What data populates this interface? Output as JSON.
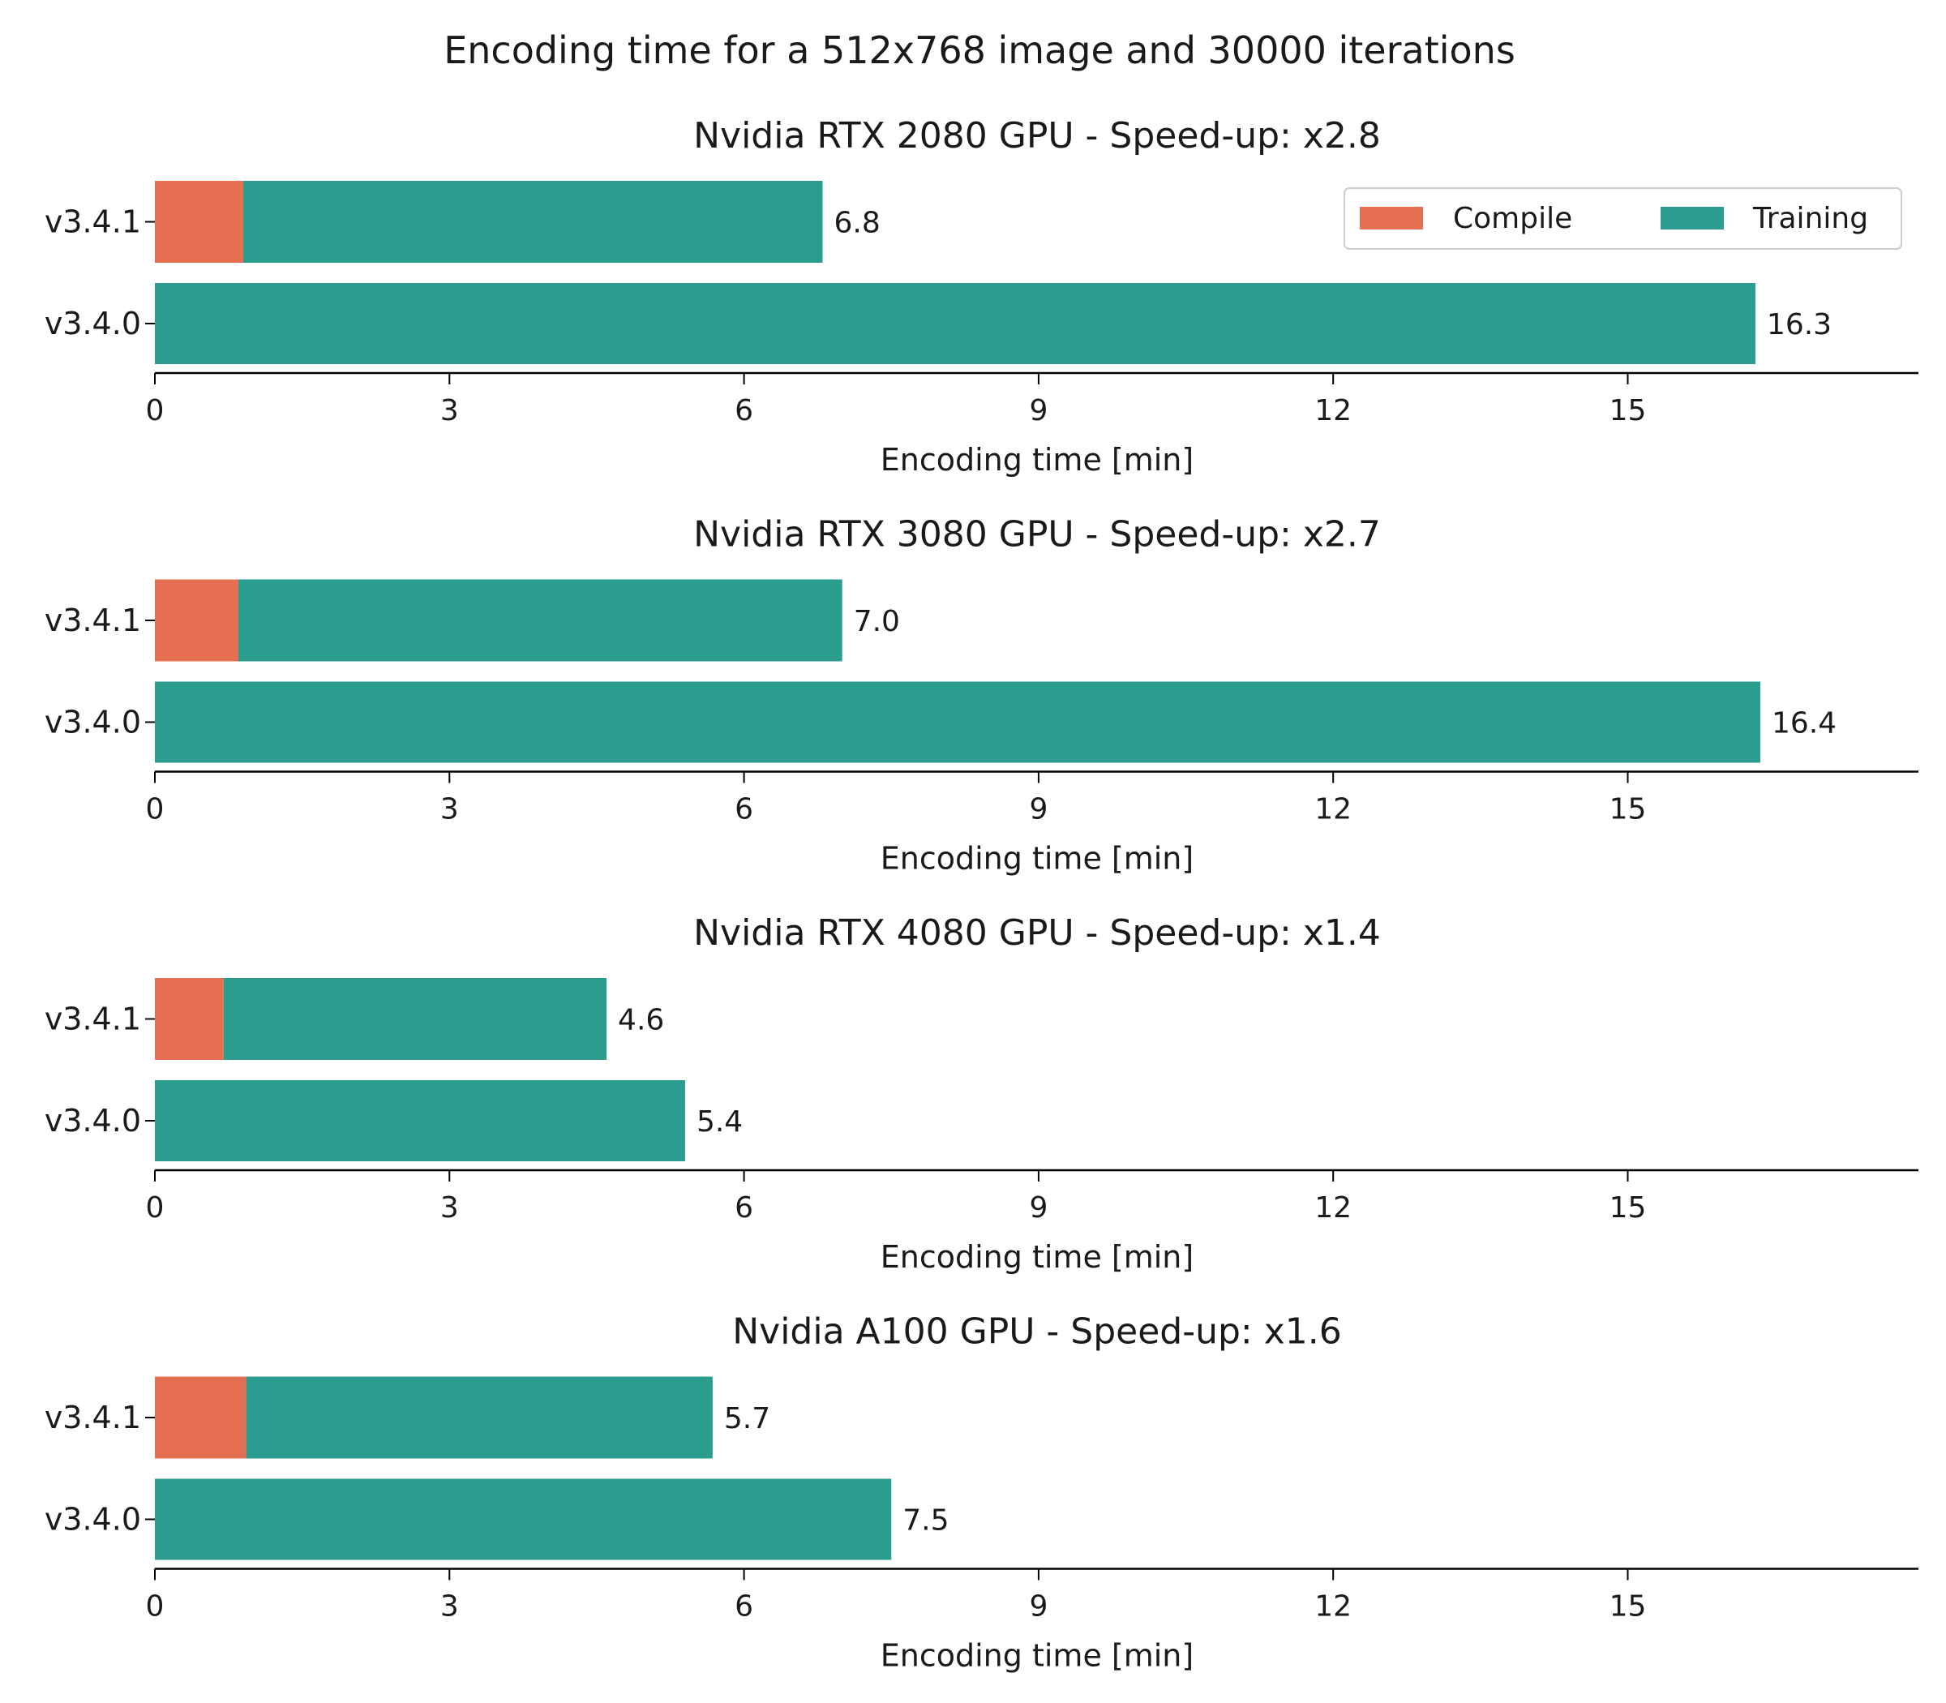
{
  "chart_data": {
    "type": "bar",
    "orientation": "horizontal",
    "stacked": true,
    "suptitle": "Encoding time for a  512x768 image and 30000 iterations",
    "xlabel": "Encoding time [min]",
    "xlim": [
      0,
      18
    ],
    "xticks": [
      "0",
      "3",
      "6",
      "9",
      "12",
      "15"
    ],
    "xtick_values": [
      0,
      3,
      6,
      9,
      12,
      15
    ],
    "legend": {
      "placement": "top-right",
      "entries": [
        {
          "name": "Compile",
          "color": "#E76F51"
        },
        {
          "name": "Training",
          "color": "#2A9D8F"
        }
      ]
    },
    "panels": [
      {
        "title": "Nvidia RTX 2080 GPU - Speed-up: x2.8",
        "bars": [
          {
            "label": "v3.4.1",
            "compile": 0.9,
            "training": 5.9,
            "total_label": "6.8"
          },
          {
            "label": "v3.4.0",
            "compile": 0,
            "training": 16.3,
            "total_label": "16.3"
          }
        ]
      },
      {
        "title": "Nvidia RTX 3080 GPU - Speed-up: x2.7",
        "bars": [
          {
            "label": "v3.4.1",
            "compile": 0.85,
            "training": 6.15,
            "total_label": "7.0"
          },
          {
            "label": "v3.4.0",
            "compile": 0,
            "training": 16.35,
            "total_label": "16.4"
          }
        ]
      },
      {
        "title": "Nvidia RTX 4080 GPU - Speed-up: x1.4",
        "bars": [
          {
            "label": "v3.4.1",
            "compile": 0.7,
            "training": 3.9,
            "total_label": "4.6"
          },
          {
            "label": "v3.4.0",
            "compile": 0,
            "training": 5.4,
            "total_label": "5.4"
          }
        ]
      },
      {
        "title": "Nvidia A100 GPU - Speed-up: x1.6",
        "bars": [
          {
            "label": "v3.4.1",
            "compile": 0.93,
            "training": 4.75,
            "total_label": "5.7"
          },
          {
            "label": "v3.4.0",
            "compile": 0,
            "training": 7.5,
            "total_label": "7.5"
          }
        ]
      }
    ]
  }
}
